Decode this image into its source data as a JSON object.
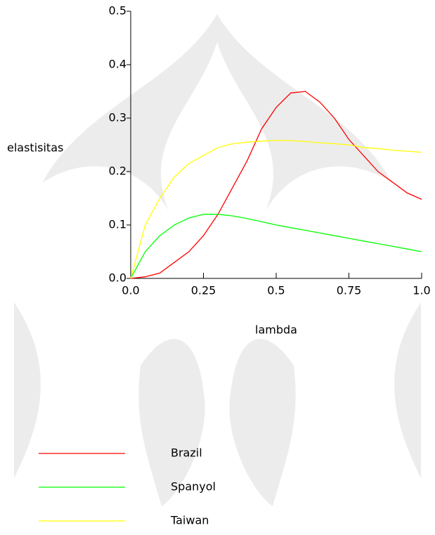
{
  "chart_data": {
    "type": "line",
    "x_label": "lambda",
    "y_label": "elastisitas",
    "x": [
      0,
      0.05,
      0.1,
      0.15,
      0.2,
      0.25,
      0.3,
      0.35,
      0.4,
      0.45,
      0.5,
      0.55,
      0.6,
      0.65,
      0.7,
      0.75,
      0.8,
      0.85,
      0.9,
      0.95,
      1.0
    ],
    "series": [
      {
        "name": "Brazil",
        "color": "#ff0000",
        "values": [
          0,
          0.003,
          0.01,
          0.03,
          0.05,
          0.08,
          0.12,
          0.17,
          0.22,
          0.28,
          0.32,
          0.347,
          0.35,
          0.33,
          0.3,
          0.26,
          0.23,
          0.2,
          0.18,
          0.16,
          0.148
        ]
      },
      {
        "name": "Spanyol",
        "color": "#00ff00",
        "values": [
          0,
          0.05,
          0.08,
          0.1,
          0.113,
          0.12,
          0.12,
          0.117,
          0.112,
          0.106,
          0.1,
          0.095,
          0.09,
          0.085,
          0.08,
          0.075,
          0.07,
          0.065,
          0.06,
          0.055,
          0.05
        ]
      },
      {
        "name": "Taiwan",
        "color": "#ffff00",
        "values": [
          0,
          0.1,
          0.15,
          0.19,
          0.215,
          0.23,
          0.245,
          0.252,
          0.255,
          0.257,
          0.258,
          0.258,
          0.256,
          0.254,
          0.252,
          0.25,
          0.245,
          0.243,
          0.24,
          0.238,
          0.236
        ]
      }
    ],
    "xlim": [
      0,
      1.0
    ],
    "xticks": [
      {
        "value": 0,
        "label": "0.0"
      },
      0.25,
      0.5,
      0.75,
      {
        "value": 1.0,
        "label": "1.0"
      }
    ],
    "ylim": [
      0,
      0.5
    ],
    "yticks": [
      {
        "value": 0,
        "label": "0.0"
      },
      0.1,
      0.2,
      0.3,
      0.4,
      0.5
    ],
    "legend": "bottom"
  }
}
